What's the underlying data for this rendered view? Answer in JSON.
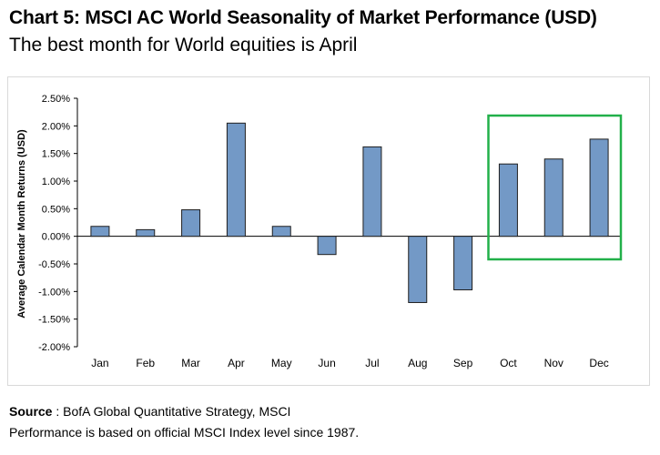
{
  "title": "Chart 5: MSCI AC World Seasonality of Market Performance (USD)",
  "subtitle": "The best month for World equities is April",
  "source_label": "Source",
  "source_sep": " : ",
  "source_text": "BofA Global Quantitative Strategy, MSCI",
  "note": "Performance is based on official MSCI Index level since 1987.",
  "chart_data": {
    "type": "bar",
    "ylabel": "Average Calendar Month Returns (USD)",
    "xlabel": "",
    "categories": [
      "Jan",
      "Feb",
      "Mar",
      "Apr",
      "May",
      "Jun",
      "Jul",
      "Aug",
      "Sep",
      "Oct",
      "Nov",
      "Dec"
    ],
    "values": [
      0.0018,
      0.0012,
      0.0048,
      0.0205,
      0.0018,
      -0.0033,
      0.0162,
      -0.012,
      -0.0097,
      0.0131,
      0.014,
      0.0176
    ],
    "ylim": [
      -0.02,
      0.025
    ],
    "yticks": [
      0.025,
      0.02,
      0.015,
      0.01,
      0.005,
      0.0,
      -0.005,
      -0.01,
      -0.015,
      -0.02
    ],
    "ytick_labels": [
      "2.50%",
      "2.00%",
      "1.50%",
      "1.00%",
      "0.50%",
      "0.00%",
      "-0.50%",
      "-1.00%",
      "-1.50%",
      "-2.00%"
    ],
    "grid": false,
    "bar_color": "#7399c6",
    "bar_edge_color": "#1f1f1f",
    "highlight": {
      "categories": [
        "Oct",
        "Nov",
        "Dec"
      ],
      "color": "#22b04a"
    }
  }
}
